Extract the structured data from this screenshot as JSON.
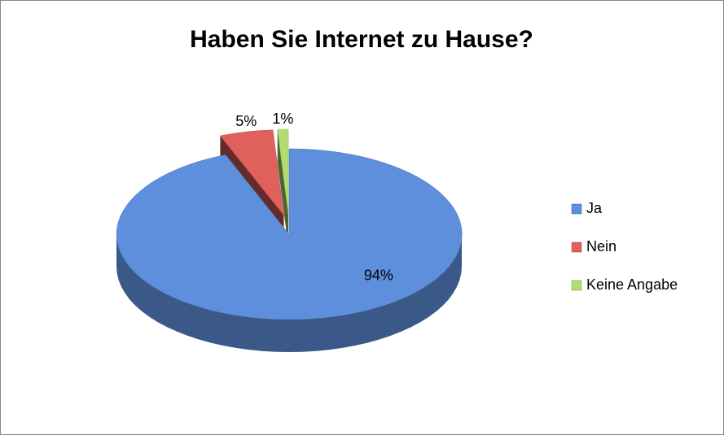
{
  "chart_data": {
    "type": "pie",
    "title": "Haben Sie Internet zu Hause?",
    "categories": [
      "Ja",
      "Nein",
      "Keine Angabe"
    ],
    "values": [
      94,
      5,
      1
    ],
    "value_labels": [
      "94%",
      "5%",
      "1%"
    ],
    "colors": [
      "#5d8fdc",
      "#e0605e",
      "#b0dc70"
    ],
    "legend": "right"
  }
}
